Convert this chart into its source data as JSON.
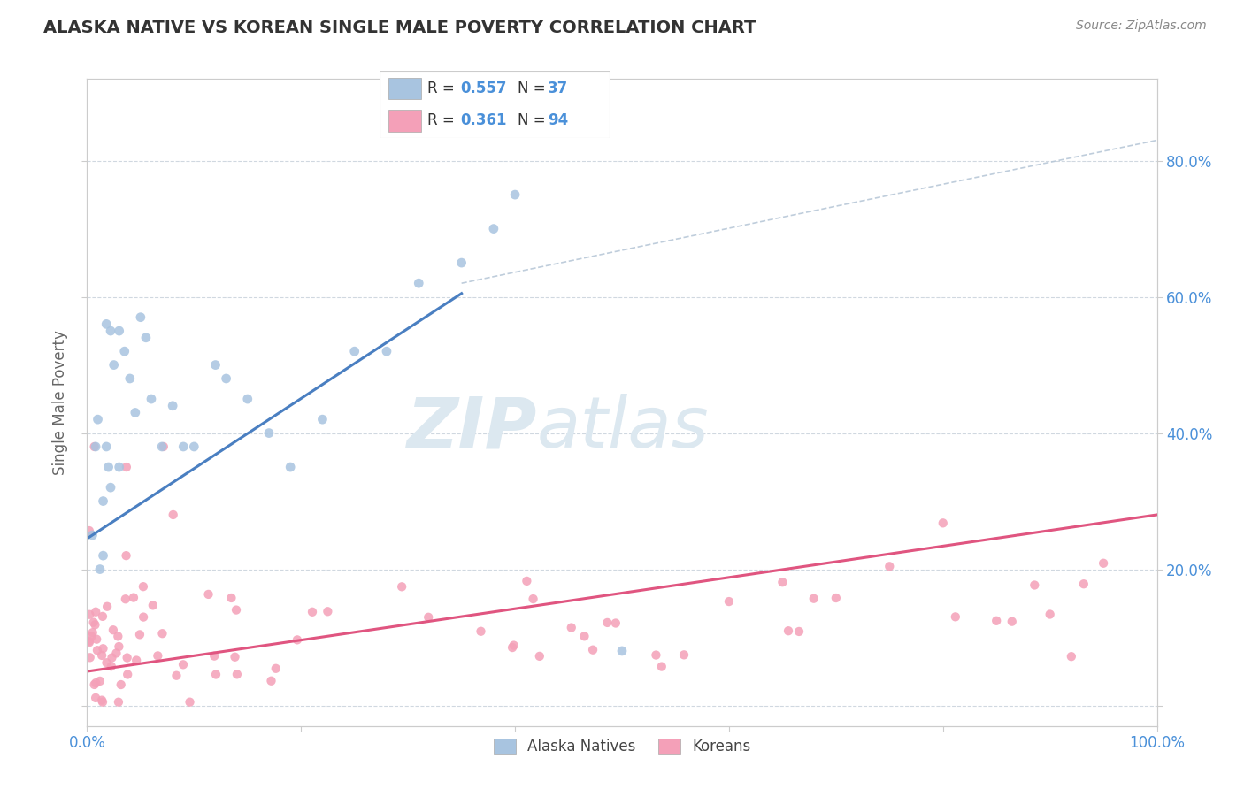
{
  "title": "ALASKA NATIVE VS KOREAN SINGLE MALE POVERTY CORRELATION CHART",
  "source": "Source: ZipAtlas.com",
  "ylabel": "Single Male Poverty",
  "xlim": [
    0,
    1.0
  ],
  "ylim": [
    -0.03,
    0.92
  ],
  "right_yticks": [
    0.0,
    0.2,
    0.4,
    0.6,
    0.8
  ],
  "right_yticklabels": [
    "",
    "20.0%",
    "40.0%",
    "60.0%",
    "80.0%"
  ],
  "alaska_R": 0.557,
  "alaska_N": 37,
  "korean_R": 0.361,
  "korean_N": 94,
  "alaska_color": "#a8c4e0",
  "korean_color": "#f4a0b8",
  "alaska_line_color": "#4a7fc1",
  "korean_line_color": "#e05580",
  "ref_line_color": "#b8c8d8",
  "grid_color": "#d0d8e0",
  "alaska_line_x0": 0.0,
  "alaska_line_y0": 0.245,
  "alaska_line_x1": 0.35,
  "alaska_line_y1": 0.605,
  "korean_line_x0": 0.0,
  "korean_line_y0": 0.05,
  "korean_line_x1": 1.0,
  "korean_line_y1": 0.28,
  "ref_line_x0": 0.35,
  "ref_line_y0": 0.62,
  "ref_line_x1": 1.0,
  "ref_line_y1": 0.83,
  "watermark_color": "#dce8f0",
  "title_color": "#333333",
  "source_color": "#888888",
  "tick_label_color": "#4a90d9",
  "ylabel_color": "#666666"
}
